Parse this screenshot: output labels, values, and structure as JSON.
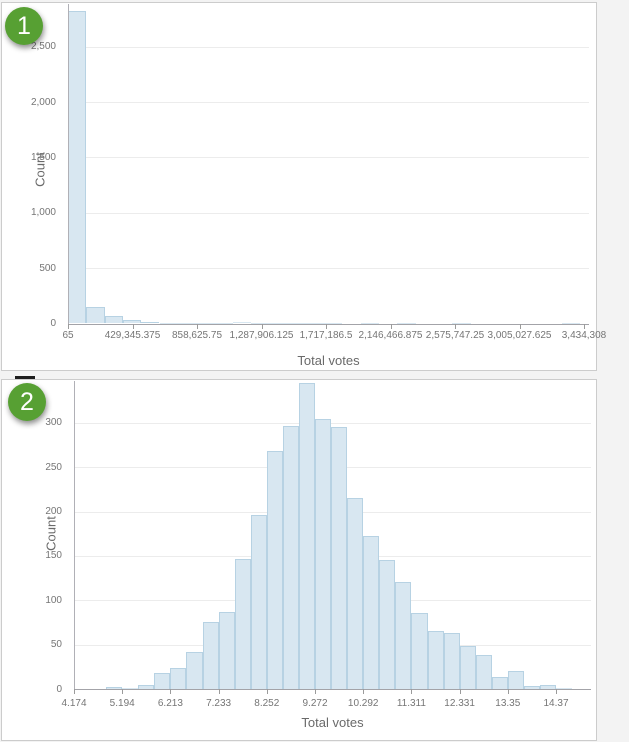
{
  "page": {
    "background_color": "#f3f3f3",
    "panel_border_color": "#cccccc"
  },
  "badges": [
    {
      "label": "1",
      "color": "#57a033"
    },
    {
      "label": "2",
      "color": "#57a033"
    }
  ],
  "chart_data": [
    {
      "type": "bar",
      "subtype": "histogram",
      "title": "",
      "xlabel": "Total votes",
      "ylabel": "Count",
      "legend": false,
      "grid": true,
      "x_tick_labels": [
        "65",
        "429,345.375",
        "858,625.75",
        "1,287,906.125",
        "1,717,186.5",
        "2,146,466.875",
        "2,575,747.25",
        "3,005,027.625",
        "3,434,308"
      ],
      "y_tick_labels": [
        "0",
        "500",
        "1,000",
        "1,500",
        "2,000",
        "2,500"
      ],
      "y_tick_values": [
        0,
        500,
        1000,
        1500,
        2000,
        2500
      ],
      "ylim": [
        0,
        2890
      ],
      "bar_counts": [
        2820,
        148,
        67,
        33,
        15,
        9,
        6,
        4,
        3,
        12,
        2,
        1,
        1,
        2,
        1,
        0,
        1,
        0,
        1,
        0,
        0,
        1,
        0,
        0,
        0,
        0,
        0,
        1
      ],
      "bar_color": "#d8e7f1",
      "bar_border_color": "#b7d2e3"
    },
    {
      "type": "bar",
      "subtype": "histogram",
      "title": "",
      "xlabel": "Total votes",
      "ylabel": "Count",
      "legend": false,
      "grid": true,
      "x_tick_labels": [
        "4.174",
        "5.194",
        "6.213",
        "7.233",
        "8.252",
        "9.272",
        "10.292",
        "11.311",
        "12.331",
        "13.35",
        "14.37"
      ],
      "y_tick_labels": [
        "0",
        "50",
        "100",
        "150",
        "200",
        "250",
        "300"
      ],
      "y_tick_values": [
        0,
        50,
        100,
        150,
        200,
        250,
        300
      ],
      "ylim": [
        0,
        348
      ],
      "bar_counts": [
        0,
        0,
        2,
        1,
        4,
        18,
        24,
        42,
        75,
        87,
        147,
        196,
        268,
        297,
        345,
        305,
        295,
        215,
        172,
        146,
        121,
        86,
        65,
        63,
        48,
        38,
        14,
        20,
        3,
        4,
        1
      ],
      "bar_color": "#d8e7f1",
      "bar_border_color": "#b7d2e3"
    }
  ]
}
